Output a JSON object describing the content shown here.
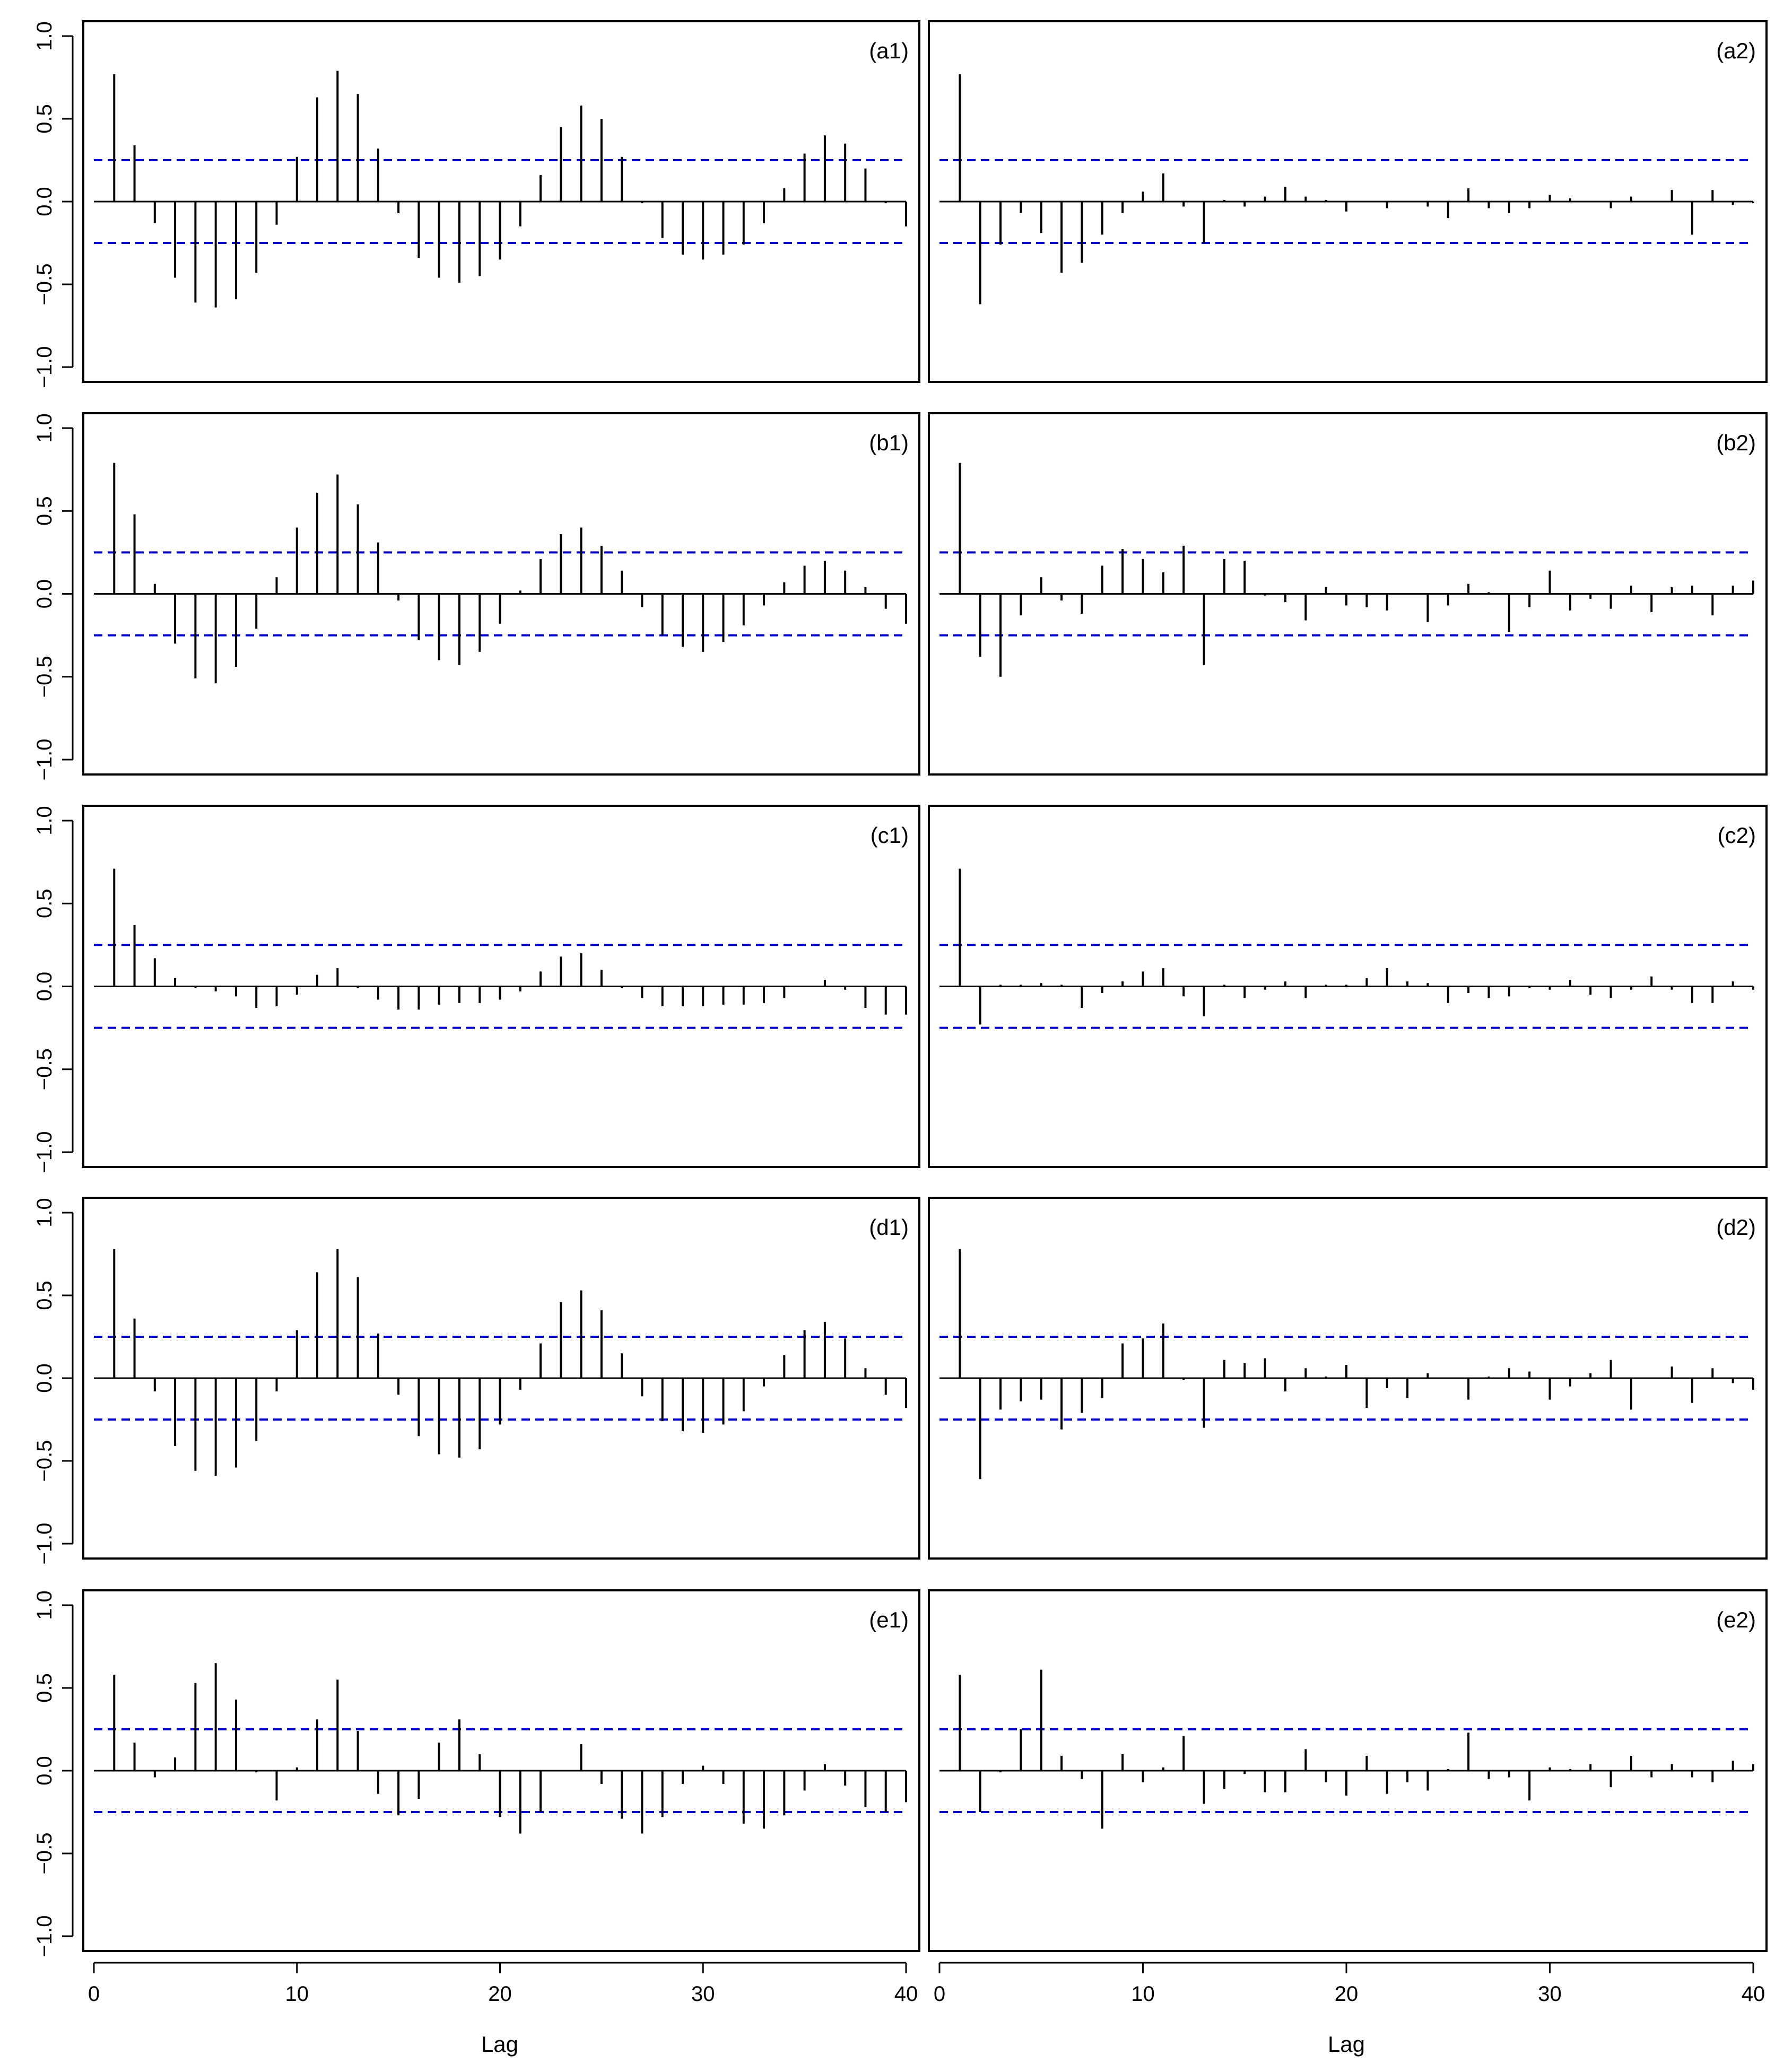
{
  "colors": {
    "bar": "#000000",
    "conf_line": "#0000cd",
    "frame": "#000000"
  },
  "xlabel": "Lag",
  "chart_data": {
    "type": "bar",
    "grid": false,
    "lags": [
      1,
      2,
      3,
      4,
      5,
      6,
      7,
      8,
      9,
      10,
      11,
      12,
      13,
      14,
      15,
      16,
      17,
      18,
      19,
      20,
      21,
      22,
      23,
      24,
      25,
      26,
      27,
      28,
      29,
      30,
      31,
      32,
      33,
      34,
      35,
      36,
      37,
      38,
      39,
      40
    ],
    "xlim": [
      0,
      40
    ],
    "ylim": [
      -1,
      1
    ],
    "yticks": [
      -1.0,
      -0.5,
      0.0,
      0.5,
      1.0
    ],
    "ytick_labels": [
      "−1.0",
      "−0.5",
      "0.0",
      "0.5",
      "1.0"
    ],
    "xticks": [
      0,
      10,
      20,
      30,
      40
    ],
    "xtick_labels": [
      "0",
      "10",
      "20",
      "30",
      "40"
    ],
    "conf_bounds": [
      -0.25,
      0.25
    ],
    "xlabel": "Lag",
    "ylabel": "",
    "panels": [
      {
        "label": "(a1)",
        "row": 0,
        "col": 0,
        "values": [
          0.77,
          0.34,
          -0.13,
          -0.46,
          -0.61,
          -0.64,
          -0.59,
          -0.43,
          -0.14,
          0.27,
          0.63,
          0.79,
          0.65,
          0.32,
          -0.07,
          -0.34,
          -0.46,
          -0.49,
          -0.45,
          -0.35,
          -0.15,
          0.16,
          0.45,
          0.58,
          0.5,
          0.27,
          -0.01,
          -0.22,
          -0.32,
          -0.35,
          -0.32,
          -0.26,
          -0.13,
          0.08,
          0.29,
          0.4,
          0.35,
          0.2,
          -0.01,
          -0.15
        ]
      },
      {
        "label": "(a2)",
        "row": 0,
        "col": 1,
        "values": [
          0.77,
          -0.62,
          -0.26,
          -0.07,
          -0.19,
          -0.43,
          -0.37,
          -0.2,
          -0.07,
          0.06,
          0.17,
          -0.03,
          -0.25,
          0.01,
          -0.03,
          0.03,
          0.09,
          0.03,
          0.01,
          -0.06,
          0.0,
          -0.04,
          0.0,
          -0.03,
          -0.1,
          0.08,
          -0.04,
          -0.07,
          -0.04,
          0.04,
          0.02,
          0.0,
          -0.04,
          0.03,
          0.0,
          0.07,
          -0.2,
          0.07,
          -0.02,
          -0.01
        ]
      },
      {
        "label": "(b1)",
        "row": 1,
        "col": 0,
        "values": [
          0.79,
          0.48,
          0.06,
          -0.3,
          -0.51,
          -0.54,
          -0.44,
          -0.21,
          0.1,
          0.4,
          0.61,
          0.72,
          0.54,
          0.31,
          -0.04,
          -0.28,
          -0.4,
          -0.43,
          -0.35,
          -0.18,
          0.02,
          0.21,
          0.36,
          0.4,
          0.29,
          0.14,
          -0.08,
          -0.25,
          -0.32,
          -0.35,
          -0.29,
          -0.19,
          -0.07,
          0.07,
          0.17,
          0.2,
          0.14,
          0.04,
          -0.09,
          -0.18
        ]
      },
      {
        "label": "(b2)",
        "row": 1,
        "col": 1,
        "values": [
          0.79,
          -0.38,
          -0.5,
          -0.13,
          0.1,
          -0.04,
          -0.12,
          0.17,
          0.27,
          0.21,
          0.13,
          0.29,
          -0.43,
          0.21,
          0.2,
          -0.01,
          -0.05,
          -0.16,
          0.04,
          -0.07,
          -0.08,
          -0.1,
          0.0,
          -0.17,
          -0.07,
          0.06,
          0.01,
          -0.23,
          -0.08,
          0.14,
          -0.1,
          -0.03,
          -0.09,
          0.05,
          -0.11,
          0.04,
          0.05,
          -0.13,
          0.05,
          0.08
        ]
      },
      {
        "label": "(c1)",
        "row": 2,
        "col": 0,
        "values": [
          0.71,
          0.37,
          0.17,
          0.05,
          -0.01,
          -0.03,
          -0.06,
          -0.13,
          -0.12,
          -0.05,
          0.07,
          0.11,
          -0.01,
          -0.08,
          -0.14,
          -0.14,
          -0.11,
          -0.1,
          -0.1,
          -0.08,
          -0.03,
          0.09,
          0.18,
          0.2,
          0.1,
          -0.01,
          -0.07,
          -0.12,
          -0.12,
          -0.12,
          -0.11,
          -0.11,
          -0.1,
          -0.07,
          0.0,
          0.04,
          -0.02,
          -0.13,
          -0.17,
          -0.17
        ]
      },
      {
        "label": "(c2)",
        "row": 2,
        "col": 1,
        "values": [
          0.71,
          -0.23,
          0.01,
          0.01,
          0.02,
          0.01,
          -0.13,
          -0.04,
          0.03,
          0.09,
          0.11,
          -0.06,
          -0.18,
          0.01,
          -0.07,
          -0.02,
          0.03,
          -0.07,
          0.01,
          0.01,
          0.05,
          0.11,
          0.03,
          0.02,
          -0.1,
          -0.04,
          -0.07,
          -0.06,
          -0.01,
          -0.02,
          0.04,
          -0.05,
          -0.07,
          -0.02,
          0.06,
          -0.02,
          -0.1,
          -0.1,
          0.03,
          -0.02
        ]
      },
      {
        "label": "(d1)",
        "row": 3,
        "col": 0,
        "values": [
          0.78,
          0.36,
          -0.08,
          -0.41,
          -0.56,
          -0.59,
          -0.54,
          -0.38,
          -0.08,
          0.29,
          0.64,
          0.78,
          0.61,
          0.27,
          -0.1,
          -0.35,
          -0.46,
          -0.48,
          -0.43,
          -0.28,
          -0.07,
          0.21,
          0.46,
          0.53,
          0.41,
          0.15,
          -0.11,
          -0.26,
          -0.32,
          -0.33,
          -0.28,
          -0.2,
          -0.05,
          0.14,
          0.29,
          0.34,
          0.24,
          0.06,
          -0.1,
          -0.18
        ]
      },
      {
        "label": "(d2)",
        "row": 3,
        "col": 1,
        "values": [
          0.78,
          -0.61,
          -0.19,
          -0.14,
          -0.13,
          -0.31,
          -0.21,
          -0.12,
          0.21,
          0.24,
          0.33,
          -0.01,
          -0.3,
          0.11,
          0.09,
          0.12,
          -0.08,
          0.06,
          0.01,
          0.08,
          -0.18,
          -0.06,
          -0.12,
          0.03,
          0.0,
          -0.13,
          0.01,
          0.06,
          0.04,
          -0.13,
          -0.05,
          0.03,
          0.11,
          -0.19,
          0.0,
          0.07,
          -0.15,
          0.06,
          -0.03,
          -0.07
        ]
      },
      {
        "label": "(e1)",
        "row": 4,
        "col": 0,
        "values": [
          0.58,
          0.17,
          -0.04,
          0.08,
          0.53,
          0.65,
          0.43,
          -0.01,
          -0.18,
          0.02,
          0.31,
          0.55,
          0.24,
          -0.14,
          -0.27,
          -0.17,
          0.17,
          0.31,
          0.1,
          -0.28,
          -0.38,
          -0.25,
          0.0,
          0.16,
          -0.08,
          -0.29,
          -0.38,
          -0.28,
          -0.08,
          0.03,
          -0.08,
          -0.32,
          -0.35,
          -0.27,
          -0.12,
          0.04,
          -0.09,
          -0.22,
          -0.25,
          -0.19
        ]
      },
      {
        "label": "(e2)",
        "row": 4,
        "col": 1,
        "values": [
          0.58,
          -0.25,
          -0.01,
          0.25,
          0.61,
          0.09,
          -0.05,
          -0.35,
          0.1,
          -0.07,
          0.02,
          0.21,
          -0.2,
          -0.11,
          -0.02,
          -0.13,
          -0.13,
          0.13,
          -0.07,
          -0.15,
          0.09,
          -0.14,
          -0.07,
          -0.12,
          0.01,
          0.23,
          -0.05,
          -0.04,
          -0.18,
          0.02,
          0.01,
          0.04,
          -0.1,
          0.09,
          -0.04,
          0.04,
          -0.04,
          -0.07,
          0.06,
          0.04
        ]
      }
    ]
  }
}
